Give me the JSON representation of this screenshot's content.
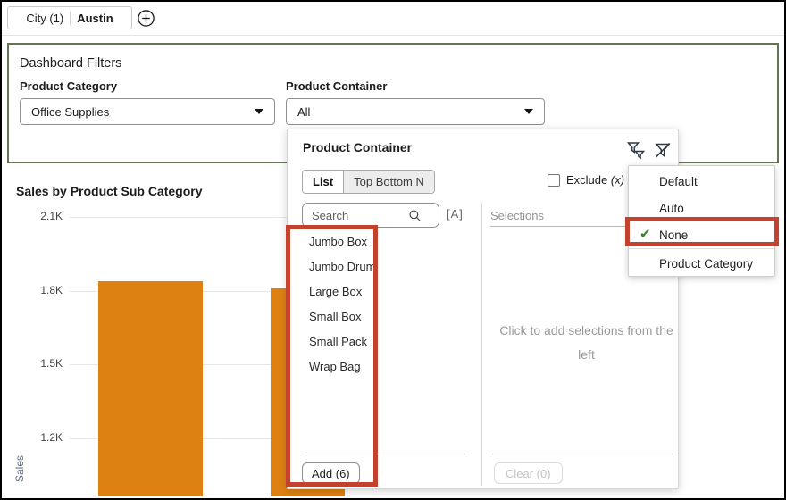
{
  "top_bar": {
    "chip_name": "City (1)",
    "chip_value": "Austin",
    "add_icon": "circle-plus-icon"
  },
  "filters_panel": {
    "title": "Dashboard Filters",
    "filters": [
      {
        "label": "Product Category",
        "value": "Office Supplies"
      },
      {
        "label": "Product Container",
        "value": "All"
      }
    ]
  },
  "chart_data": {
    "type": "bar",
    "title": "Sales by Product Sub Category",
    "ylabel": "Sales",
    "yticks": [
      {
        "label": "2.1K",
        "value": 2100
      },
      {
        "label": "1.8K",
        "value": 1800
      },
      {
        "label": "1.5K",
        "value": 1500
      },
      {
        "label": "1.2K",
        "value": 1200
      }
    ],
    "ylim_visible": [
      1200,
      2100
    ],
    "grid": true,
    "bar_color": "#DD8113",
    "bars": [
      {
        "value": 1840,
        "x": 110,
        "w": 117
      },
      {
        "value": 1810,
        "x": 303,
        "w": 83
      }
    ]
  },
  "filter_popup": {
    "title": "Product Container",
    "icons": [
      "limit-values-icon",
      "clear-filter-icon"
    ],
    "tabs": [
      {
        "label": "List",
        "active": true
      },
      {
        "label": "Top Bottom N",
        "active": false
      }
    ],
    "exclude_label": "Exclude",
    "exclude_suffix": "(x)",
    "exclude_checked": false,
    "search_placeholder": "Search",
    "match_case_label": "[A]",
    "list_items": [
      "Jumbo Box",
      "Jumbo Drum",
      "Large Box",
      "Small Box",
      "Small Pack",
      "Wrap Bag"
    ],
    "add_button": "Add (6)",
    "selections": {
      "header": "Selections",
      "empty_text": "Click to add selections from the left",
      "clear_button": "Clear (0)"
    }
  },
  "menu": {
    "items": [
      {
        "label": "Default",
        "checked": false
      },
      {
        "label": "Auto",
        "checked": false
      },
      {
        "label": "None",
        "checked": true
      },
      {
        "label": "Product Category",
        "checked": false
      }
    ],
    "check_color": "#3E8032"
  },
  "annotations": {
    "color": "#C3422E",
    "targets": [
      "value-list-with-add-button",
      "menu-item-none"
    ]
  }
}
